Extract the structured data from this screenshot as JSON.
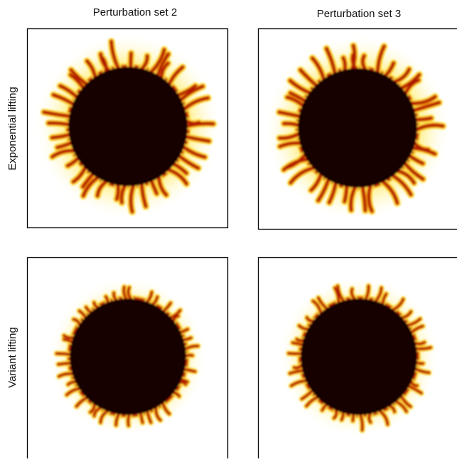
{
  "columns": [
    "Perturbation set 2",
    "Perturbation set 3"
  ],
  "rows": [
    "Exponential lifting",
    "Variant lifting"
  ]
}
